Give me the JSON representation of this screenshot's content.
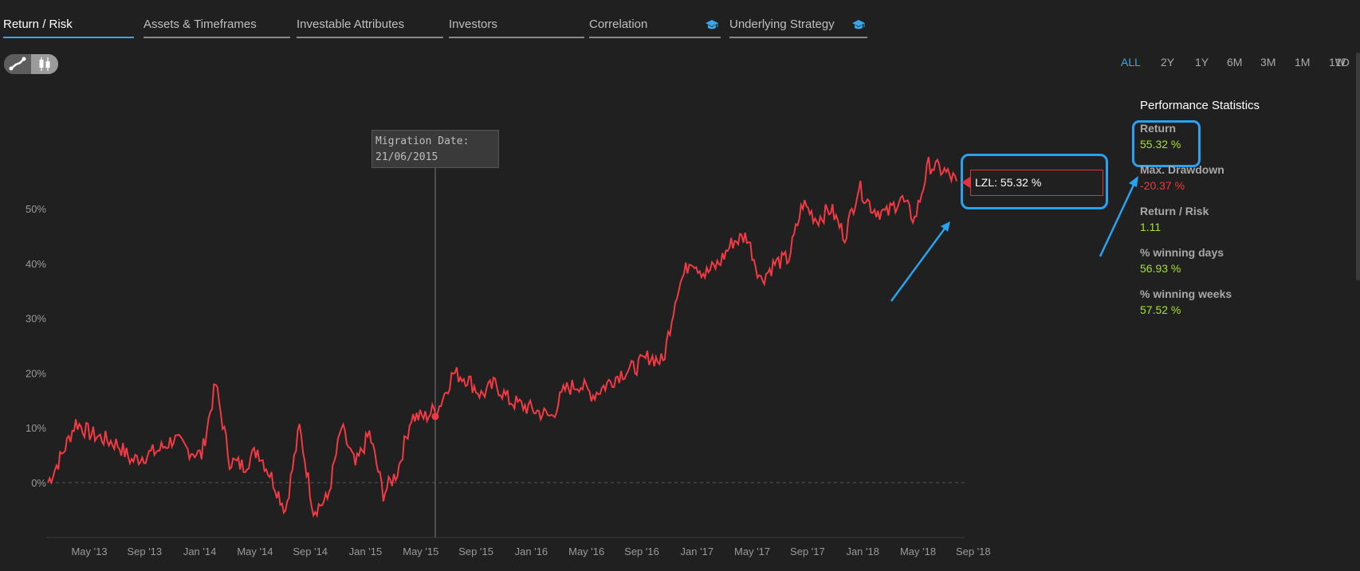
{
  "tabs": [
    {
      "label": "Return / Risk",
      "active": true,
      "icon": ""
    },
    {
      "label": "Assets & Timeframes",
      "active": false,
      "icon": ""
    },
    {
      "label": "Investable Attributes",
      "active": false,
      "icon": ""
    },
    {
      "label": "Investors",
      "active": false,
      "icon": ""
    },
    {
      "label": "Correlation",
      "active": false,
      "icon": "graduation-cap-icon"
    },
    {
      "label": "Underlying Strategy",
      "active": false,
      "icon": "graduation-cap-icon"
    }
  ],
  "chart_toggle": {
    "line_icon": "line-chart-icon",
    "candle_icon": "candlestick-icon",
    "active": "line"
  },
  "ranges": [
    "ALL",
    "2Y",
    "1Y",
    "6M",
    "3M",
    "1M",
    "1W",
    "1D"
  ],
  "active_range": "ALL",
  "migration": {
    "label": "Migration Date:",
    "date": "21/06/2015"
  },
  "series_label": "LZL: 55.32 %",
  "performance": {
    "title": "Performance Statistics",
    "stats": [
      {
        "label": "Return",
        "value": "55.32 %",
        "tone": "pos"
      },
      {
        "label": "Max. Drawdown",
        "value": "-20.37 %",
        "tone": "neg"
      },
      {
        "label": "Return / Risk",
        "value": "1.11",
        "tone": "pos"
      },
      {
        "label": "% winning days",
        "value": "56.93 %",
        "tone": "pos"
      },
      {
        "label": "% winning weeks",
        "value": "57.52 %",
        "tone": "pos"
      }
    ]
  },
  "colors": {
    "line": "#f23a44",
    "accent": "#3aa7e8",
    "annotation": "#29a3f0",
    "positive": "#a6e22e",
    "negative": "#f03a3a"
  },
  "chart_data": {
    "type": "line",
    "series": [
      {
        "name": "LZL",
        "color": "#f23a44"
      }
    ],
    "x": [
      "Apr '13",
      "May '13",
      "Jun '13",
      "Jul '13",
      "Aug '13",
      "Sep '13",
      "Oct '13",
      "Nov '13",
      "Dec '13",
      "Jan '14",
      "Feb '14",
      "Mar '14",
      "Apr '14",
      "May '14",
      "Jun '14",
      "Jul '14",
      "Aug '14",
      "Sep '14",
      "Oct '14",
      "Nov '14",
      "Dec '14",
      "Jan '15",
      "Feb '15",
      "Mar '15",
      "Apr '15",
      "May '15",
      "Jun '15",
      "Jul '15",
      "Aug '15",
      "Sep '15",
      "Oct '15",
      "Nov '15",
      "Dec '15",
      "Jan '16",
      "Feb '16",
      "Mar '16",
      "Apr '16",
      "May '16",
      "Jun '16",
      "Jul '16",
      "Aug '16",
      "Sep '16",
      "Oct '16",
      "Nov '16",
      "Dec '16",
      "Jan '17",
      "Feb '17",
      "Mar '17",
      "Apr '17",
      "May '17",
      "Jun '17",
      "Jul '17",
      "Aug '17",
      "Sep '17",
      "Oct '17",
      "Nov '17",
      "Dec '17",
      "Jan '18",
      "Feb '18",
      "Mar '18",
      "Apr '18",
      "May '18",
      "Jun '18",
      "Jul '18",
      "Aug '18",
      "Sep '18"
    ],
    "values": [
      0,
      5,
      11,
      9,
      8,
      7,
      4,
      5,
      6,
      8,
      6,
      5,
      18,
      4,
      3,
      6,
      1,
      -5,
      10,
      -5,
      -3,
      10,
      3,
      9,
      -2,
      2,
      12,
      12,
      14,
      20,
      19,
      16,
      18,
      15,
      14,
      13,
      12,
      17,
      18,
      16,
      18,
      20,
      21,
      23,
      22,
      35,
      41,
      38,
      40,
      44,
      45,
      37,
      40,
      41,
      51,
      48,
      50,
      45,
      54,
      50,
      49,
      52,
      48,
      58,
      57,
      55
    ],
    "x_ticks": [
      "May '13",
      "Sep '13",
      "Jan '14",
      "May '14",
      "Sep '14",
      "Jan '15",
      "May '15",
      "Sep '15",
      "Jan '16",
      "May '16",
      "Sep '16",
      "Jan '17",
      "May '17",
      "Sep '17",
      "Jan '18",
      "May '18",
      "Sep '18"
    ],
    "y_ticks": [
      "0%",
      "10%",
      "20%",
      "30%",
      "40%",
      "50%"
    ],
    "ylim": [
      -10,
      65
    ],
    "grid": false,
    "legend": "none"
  }
}
